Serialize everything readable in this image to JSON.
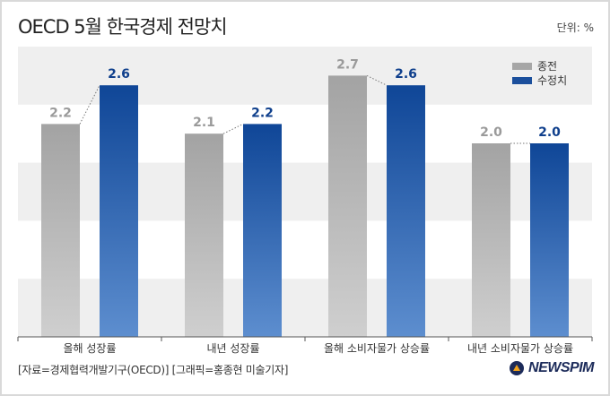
{
  "header": {
    "title": "OECD 5월 한국경제 전망치",
    "unit": "단위: %"
  },
  "footer": {
    "source": "[자료=경제협력개발기구(OECD)] [그래픽=홍종현 미술기자]",
    "brand": "NEWSPIM"
  },
  "colors": {
    "previous": "#a6a6a6",
    "revised": "#1b4f9c",
    "band": "#efefef"
  },
  "chart_data": {
    "type": "bar",
    "categories": [
      "올해 성장률",
      "내년 성장률",
      "올해 소비자물가 상승률",
      "내년 소비자물가 상승률"
    ],
    "series": [
      {
        "name": "종전",
        "values": [
          2.2,
          2.1,
          2.7,
          2.0
        ],
        "labels": [
          "2.2",
          "2.1",
          "2.7",
          "2.0"
        ]
      },
      {
        "name": "수정치",
        "values": [
          2.6,
          2.2,
          2.6,
          2.0
        ],
        "labels": [
          "2.6",
          "2.2",
          "2.6",
          "2.0"
        ]
      }
    ],
    "title": "OECD 5월 한국경제 전망치",
    "ylim": [
      0,
      3.0
    ],
    "unit": "%",
    "legend_position": "top-right",
    "grid": "alternating bands"
  }
}
